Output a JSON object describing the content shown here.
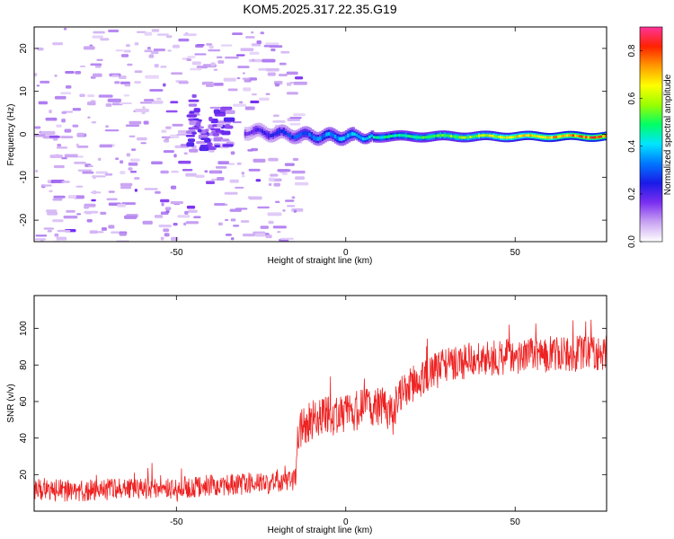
{
  "title": "KOM5.2025.317.22.35.G19",
  "chart_data": [
    {
      "type": "heatmap",
      "name": "spectrogram",
      "xlabel": "Height of straight line (km)",
      "ylabel": "Frequency (Hz)",
      "xlim": [
        -92,
        77
      ],
      "ylim": [
        -25,
        25
      ],
      "xticks": [
        -50,
        0,
        50
      ],
      "yticks": [
        -20,
        -10,
        0,
        10,
        20
      ],
      "grid": false,
      "colorbar": {
        "label": "Normalized spectral amplitude",
        "range": [
          0,
          0.9
        ],
        "ticks": [
          "0.0",
          "0.2",
          "0.4",
          "0.6",
          "0.8"
        ],
        "colors": [
          "#ffffff",
          "#c9a3f2",
          "#7b2ff0",
          "#1a1ae6",
          "#0077ff",
          "#00e5ff",
          "#00ff66",
          "#99ff00",
          "#ffff00",
          "#ff9900",
          "#ff2200",
          "#ff3399"
        ]
      },
      "dense_band": {
        "x_start": -30,
        "x_end": 77,
        "frequency_center": -0.5,
        "amplitude_start": 0.15,
        "amplitude_end": 0.75
      },
      "noise_region": {
        "x_start": -92,
        "x_end": -15,
        "typical_amplitude": 0.05
      }
    },
    {
      "type": "line",
      "name": "snr",
      "xlabel": "Height of straight line (km)",
      "ylabel": "SNR (v/v)",
      "xlim": [
        -92,
        77
      ],
      "ylim": [
        0,
        118
      ],
      "xticks": [
        -50,
        0,
        50
      ],
      "yticks": [
        20,
        40,
        60,
        80,
        100
      ],
      "grid": false,
      "series": [
        {
          "name": "SNR",
          "color": "#ee2222",
          "x": [
            -92,
            -80,
            -70,
            -60,
            -50,
            -40,
            -30,
            -20,
            -15,
            -14,
            -10,
            -5,
            0,
            5,
            10,
            14,
            15,
            18,
            20,
            25,
            30,
            35,
            40,
            45,
            50,
            55,
            60,
            65,
            70,
            77
          ],
          "y": [
            12,
            11,
            12,
            12,
            13,
            14,
            15,
            16,
            17,
            45,
            50,
            52,
            53,
            56,
            58,
            52,
            60,
            68,
            70,
            75,
            80,
            82,
            84,
            84,
            85,
            85,
            86,
            86,
            86,
            87
          ]
        }
      ]
    }
  ]
}
